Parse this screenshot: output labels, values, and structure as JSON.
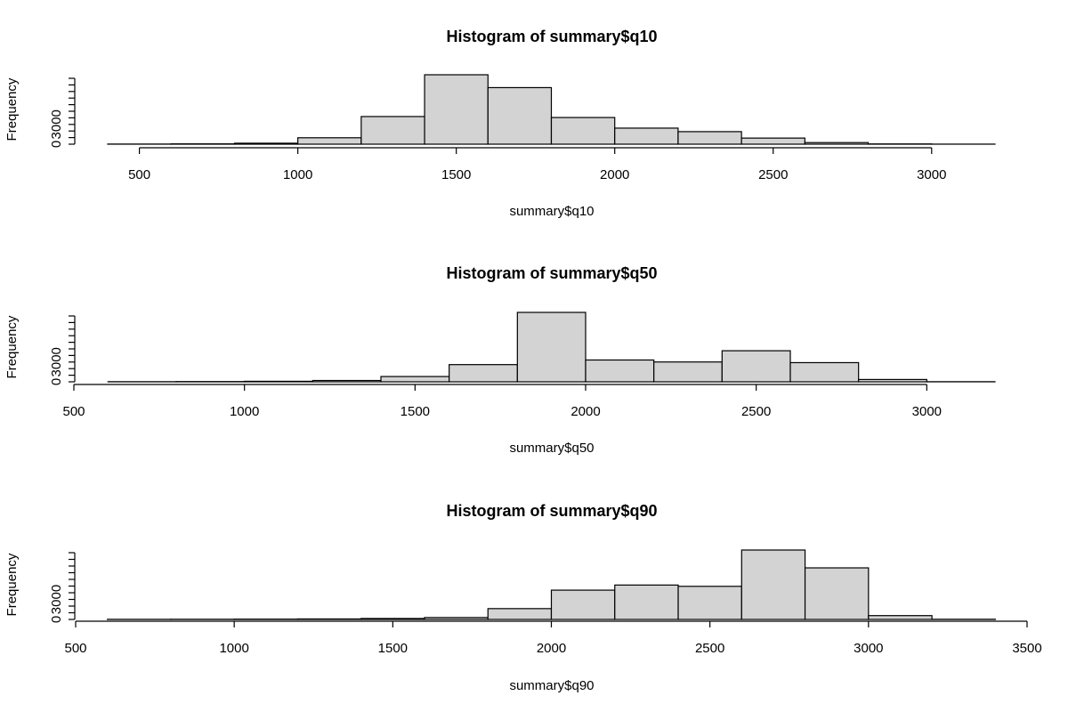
{
  "chart_data": [
    {
      "type": "histogram",
      "title": "Histogram of summary$q10",
      "xlabel": "summary$q10",
      "ylabel": "Frequency",
      "bin_width": 200,
      "bin_edges": [
        400,
        600,
        800,
        1000,
        1200,
        1400,
        1600,
        1800,
        2000,
        2200,
        2400,
        2600,
        2800,
        3000,
        3200
      ],
      "values": [
        20,
        50,
        150,
        1000,
        4300,
        10800,
        8800,
        4150,
        2500,
        1950,
        950,
        250,
        40,
        10
      ],
      "x_ticks": [
        500,
        1000,
        1500,
        2000,
        2500,
        3000
      ],
      "x_tick_labels": [
        "500",
        "1000",
        "1500",
        "2000",
        "2500",
        "3000"
      ],
      "y_ticks": [
        0,
        1000,
        2000,
        3000,
        4000,
        5000,
        6000,
        7000,
        8000,
        9000,
        10000
      ],
      "y_tick_labels": [
        "0",
        "",
        "",
        "3000",
        "",
        "",
        "",
        "",
        "",
        "",
        ""
      ],
      "xlim": [
        400,
        3200
      ],
      "ylim": [
        0,
        10800
      ]
    },
    {
      "type": "histogram",
      "title": "Histogram of summary$q50",
      "xlabel": "summary$q50",
      "ylabel": "Frequency",
      "bin_width": 200,
      "bin_edges": [
        600,
        800,
        1000,
        1200,
        1400,
        1600,
        1800,
        2000,
        2200,
        2400,
        2600,
        2800,
        3000,
        3200
      ],
      "values": [
        20,
        40,
        80,
        200,
        800,
        2600,
        10500,
        3300,
        3000,
        4700,
        2900,
        350,
        20
      ],
      "x_ticks": [
        500,
        1000,
        1500,
        2000,
        2500,
        3000
      ],
      "x_tick_labels": [
        "500",
        "1000",
        "1500",
        "2000",
        "2500",
        "3000"
      ],
      "y_ticks": [
        0,
        1000,
        2000,
        3000,
        4000,
        5000,
        6000,
        7000,
        8000,
        9000,
        10000
      ],
      "y_tick_labels": [
        "0",
        "",
        "",
        "3000",
        "",
        "",
        "",
        "",
        "",
        "",
        ""
      ],
      "xlim": [
        500,
        3200
      ],
      "ylim": [
        0,
        10500
      ]
    },
    {
      "type": "histogram",
      "title": "Histogram of summary$q90",
      "xlabel": "summary$q90",
      "ylabel": "Frequency",
      "bin_width": 200,
      "bin_edges": [
        600,
        800,
        1000,
        1200,
        1400,
        1600,
        1800,
        2000,
        2200,
        2400,
        2600,
        2800,
        3000,
        3200,
        3400
      ],
      "values": [
        20,
        30,
        50,
        80,
        150,
        300,
        1700,
        4600,
        5400,
        5200,
        10900,
        8100,
        600,
        30
      ],
      "x_ticks": [
        500,
        1000,
        1500,
        2000,
        2500,
        3000,
        3500
      ],
      "x_tick_labels": [
        "500",
        "1000",
        "1500",
        "2000",
        "2500",
        "3000",
        "3500"
      ],
      "y_ticks": [
        0,
        1000,
        2000,
        3000,
        4000,
        5000,
        6000,
        7000,
        8000,
        9000,
        10000
      ],
      "y_tick_labels": [
        "0",
        "",
        "",
        "3000",
        "",
        "",
        "",
        "",
        "",
        "",
        ""
      ],
      "xlim": [
        500,
        3500
      ],
      "ylim": [
        0,
        10900
      ]
    }
  ]
}
